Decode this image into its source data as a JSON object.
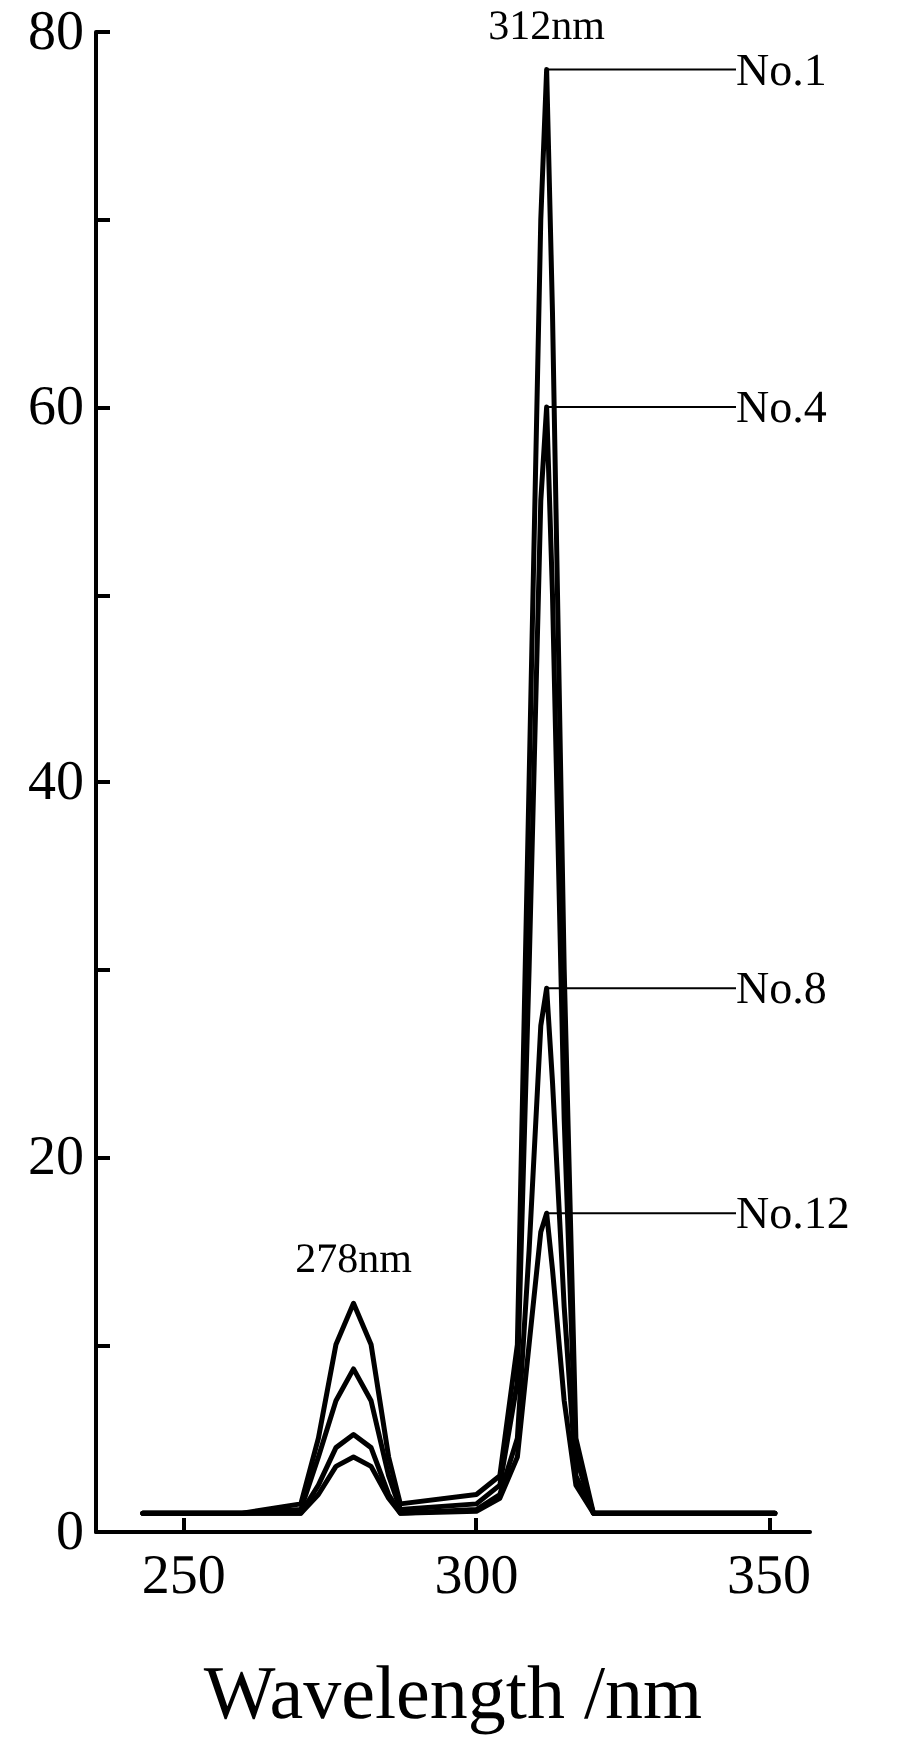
{
  "chart_data": {
    "type": "line",
    "xlabel": "Wavelength /nm",
    "x": [
      243,
      260,
      270,
      273,
      276,
      279,
      282,
      285,
      287,
      300,
      304,
      307,
      309,
      311,
      312,
      313,
      315,
      317,
      320,
      351
    ],
    "series": [
      {
        "name": "No.1",
        "color": "#000000",
        "values": [
          1,
          1,
          1.5,
          5,
          10,
          12.2,
          10,
          4,
          1.5,
          2,
          3,
          10,
          40,
          70,
          78,
          65,
          30,
          5,
          1,
          1
        ]
      },
      {
        "name": "No.4",
        "color": "#000000",
        "values": [
          1,
          1,
          1.2,
          4,
          7,
          8.7,
          7,
          3,
          1.2,
          1.5,
          2.5,
          8,
          30,
          55,
          60,
          50,
          22,
          4,
          1,
          1
        ]
      },
      {
        "name": "No.8",
        "color": "#000000",
        "values": [
          1,
          1,
          1,
          2.5,
          4.5,
          5.2,
          4.5,
          2,
          1,
          1.2,
          2,
          5,
          15,
          27,
          29,
          24,
          12,
          3,
          1,
          1
        ]
      },
      {
        "name": "No.12",
        "color": "#000000",
        "values": [
          1,
          1,
          1,
          2,
          3.5,
          4,
          3.5,
          1.8,
          1,
          1.1,
          1.8,
          4,
          10,
          16,
          17,
          14,
          7,
          2.5,
          1,
          1
        ]
      }
    ],
    "annotations": [
      {
        "text": "312nm",
        "x": 312,
        "y": 78
      },
      {
        "text": "278nm",
        "x": 279,
        "y": 12.2
      }
    ],
    "xlim": [
      235,
      357
    ],
    "xticks": [
      250,
      300,
      350
    ],
    "ylim": [
      0,
      80
    ],
    "yticks": [
      0,
      {
        "value": 10,
        "label": null
      },
      20,
      {
        "value": 30,
        "label": null
      },
      40,
      {
        "value": 50,
        "label": null
      },
      60,
      {
        "value": 70,
        "label": null
      },
      80
    ],
    "line_style": "solid",
    "legend": "right"
  }
}
